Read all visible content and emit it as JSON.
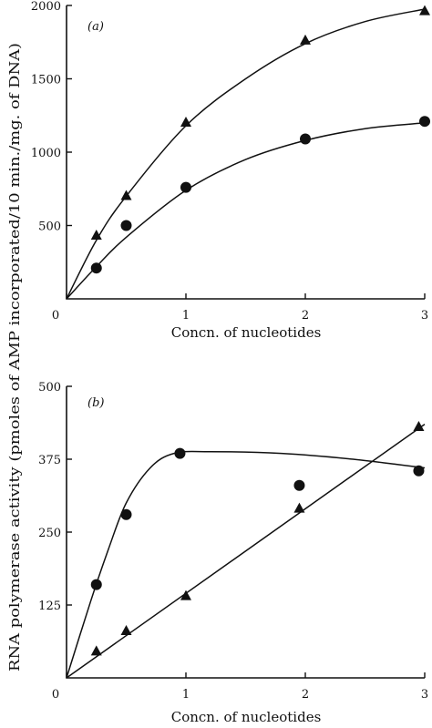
{
  "ylabel": "RNA polymerase activity (pmoles of AMP incorporated/10 min./mg. of DNA)",
  "chart_data": [
    {
      "type": "scatter",
      "panel_label": "(a)",
      "xlabel": "Concn. of nucleotides",
      "xlim": [
        0,
        3
      ],
      "ylim": [
        0,
        2000
      ],
      "xticks": [
        "0",
        "1",
        "2",
        "3"
      ],
      "yticks": [
        "500",
        "1000",
        "1500",
        "2000"
      ],
      "grid": false,
      "series": [
        {
          "marker": "triangle",
          "x": [
            0.25,
            0.5,
            1.0,
            2.0,
            3.0
          ],
          "y": [
            430,
            700,
            1200,
            1760,
            1960
          ],
          "fit": [
            [
              0,
              0
            ],
            [
              0.25,
              400
            ],
            [
              0.5,
              700
            ],
            [
              1.0,
              1180
            ],
            [
              1.5,
              1500
            ],
            [
              2.0,
              1740
            ],
            [
              2.5,
              1890
            ],
            [
              3.0,
              1975
            ]
          ]
        },
        {
          "marker": "circle",
          "x": [
            0.25,
            0.5,
            1.0,
            2.0,
            3.0
          ],
          "y": [
            210,
            500,
            760,
            1090,
            1210
          ],
          "fit": [
            [
              0,
              0
            ],
            [
              0.25,
              220
            ],
            [
              0.5,
              420
            ],
            [
              1.0,
              740
            ],
            [
              1.5,
              950
            ],
            [
              2.0,
              1080
            ],
            [
              2.5,
              1160
            ],
            [
              3.0,
              1200
            ]
          ]
        }
      ]
    },
    {
      "type": "scatter",
      "panel_label": "(b)",
      "xlabel": "Concn. of nucleotides",
      "xlim": [
        0,
        3
      ],
      "ylim": [
        0,
        500
      ],
      "xticks": [
        "0",
        "1",
        "2",
        "3"
      ],
      "yticks": [
        "125",
        "250",
        "375",
        "500"
      ],
      "grid": false,
      "series": [
        {
          "marker": "circle",
          "x": [
            0.25,
            0.5,
            0.95,
            1.95,
            2.95
          ],
          "y": [
            160,
            280,
            385,
            330,
            355
          ],
          "fit": [
            [
              0,
              0
            ],
            [
              0.2,
              130
            ],
            [
              0.35,
              220
            ],
            [
              0.5,
              300
            ],
            [
              0.7,
              360
            ],
            [
              0.9,
              385
            ],
            [
              1.2,
              388
            ],
            [
              1.8,
              385
            ],
            [
              2.4,
              375
            ],
            [
              3.0,
              360
            ]
          ]
        },
        {
          "marker": "triangle",
          "x": [
            0.25,
            0.5,
            1.0,
            1.95,
            2.95
          ],
          "y": [
            45,
            80,
            140,
            290,
            430
          ],
          "fit": [
            [
              0,
              0
            ],
            [
              3.0,
              435
            ]
          ]
        }
      ]
    }
  ]
}
